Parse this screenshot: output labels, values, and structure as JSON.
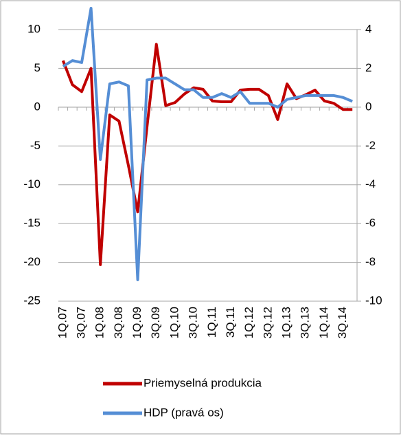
{
  "chart_data": {
    "type": "line",
    "categories": [
      "1Q.07",
      null,
      "3Q.07",
      null,
      "1Q.08",
      null,
      "3Q.08",
      null,
      "1Q.09",
      null,
      "3Q.09",
      null,
      "1Q.10",
      null,
      "3Q.10",
      null,
      "1Q.11",
      null,
      "3Q.11",
      null,
      "1Q.12",
      null,
      "3Q.12",
      null,
      "1Q.13",
      null,
      "3Q.13",
      null,
      "1Q.14",
      null,
      "3Q.14",
      null
    ],
    "series": [
      {
        "name": "Priemyselná produkcia",
        "color": "#c00000",
        "values": [
          6.0,
          2.9,
          2.0,
          5.0,
          -20.3,
          -1.0,
          -1.8,
          -7.5,
          -13.5,
          -2.5,
          8.1,
          0.2,
          0.6,
          1.7,
          2.5,
          2.3,
          0.8,
          0.7,
          0.7,
          2.2,
          2.3,
          2.3,
          1.5,
          -1.6,
          3.0,
          1.1,
          1.6,
          2.2,
          0.8,
          0.5,
          -0.3,
          -0.3
        ]
      },
      {
        "name": "HDP (pravá os)",
        "color": "#558ed5",
        "axis": "y2",
        "values": [
          2.1,
          2.4,
          2.3,
          5.1,
          -2.7,
          1.2,
          1.3,
          1.1,
          -8.9,
          1.4,
          1.5,
          1.5,
          1.2,
          0.9,
          0.9,
          0.5,
          0.5,
          0.7,
          0.5,
          0.8,
          0.2,
          0.2,
          0.2,
          0.0,
          0.4,
          0.5,
          0.6,
          0.6,
          0.6,
          0.6,
          0.5,
          0.3
        ]
      }
    ],
    "ylim": [
      -25,
      10
    ],
    "yticks": [
      -25,
      -20,
      -15,
      -10,
      -5,
      0,
      5,
      10
    ],
    "y2lim": [
      -10,
      4
    ],
    "y2ticks": [
      -10,
      -8,
      -6,
      -4,
      -2,
      0,
      2,
      4
    ],
    "grid": true,
    "legend": "bottom"
  }
}
